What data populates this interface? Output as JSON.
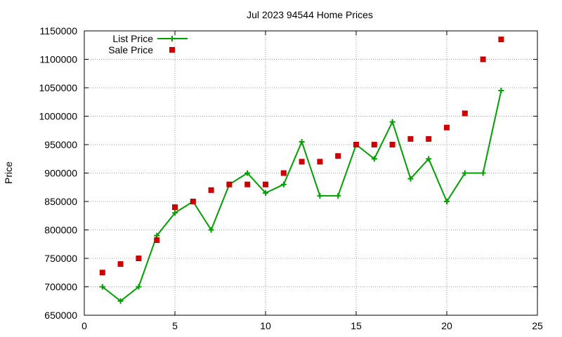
{
  "chart_data": {
    "type": "line",
    "title": "Jul 2023 94544 Home Prices",
    "xlabel": "",
    "ylabel": "Price",
    "xlim": [
      0,
      25
    ],
    "ylim": [
      650000,
      1150000
    ],
    "xticks": [
      0,
      5,
      10,
      15,
      20,
      25
    ],
    "yticks": [
      650000,
      700000,
      750000,
      800000,
      850000,
      900000,
      950000,
      1000000,
      1050000,
      1100000,
      1150000
    ],
    "grid": true,
    "legend_position": "top-left",
    "series": [
      {
        "name": "List Price",
        "style": "line-with-plus-markers",
        "color": "#00a000",
        "x": [
          1,
          2,
          3,
          4,
          5,
          6,
          7,
          8,
          9,
          10,
          11,
          12,
          13,
          14,
          15,
          16,
          17,
          18,
          19,
          20,
          21,
          22,
          23
        ],
        "y": [
          700000,
          675000,
          700000,
          790000,
          830000,
          850000,
          800000,
          880000,
          900000,
          865000,
          880000,
          955000,
          860000,
          860000,
          950000,
          925000,
          990000,
          890000,
          925000,
          850000,
          900000,
          900000,
          1045000
        ]
      },
      {
        "name": "Sale Price",
        "style": "square-markers",
        "color": "#cc0000",
        "x": [
          1,
          2,
          3,
          4,
          5,
          6,
          7,
          8,
          9,
          10,
          11,
          12,
          13,
          14,
          15,
          16,
          17,
          18,
          19,
          20,
          21,
          22,
          23
        ],
        "y": [
          725000,
          740000,
          750000,
          782000,
          840000,
          850000,
          870000,
          880000,
          880000,
          880000,
          900000,
          920000,
          920000,
          930000,
          950000,
          950000,
          950000,
          960000,
          960000,
          980000,
          1005000,
          1100000,
          1135000
        ]
      }
    ]
  }
}
